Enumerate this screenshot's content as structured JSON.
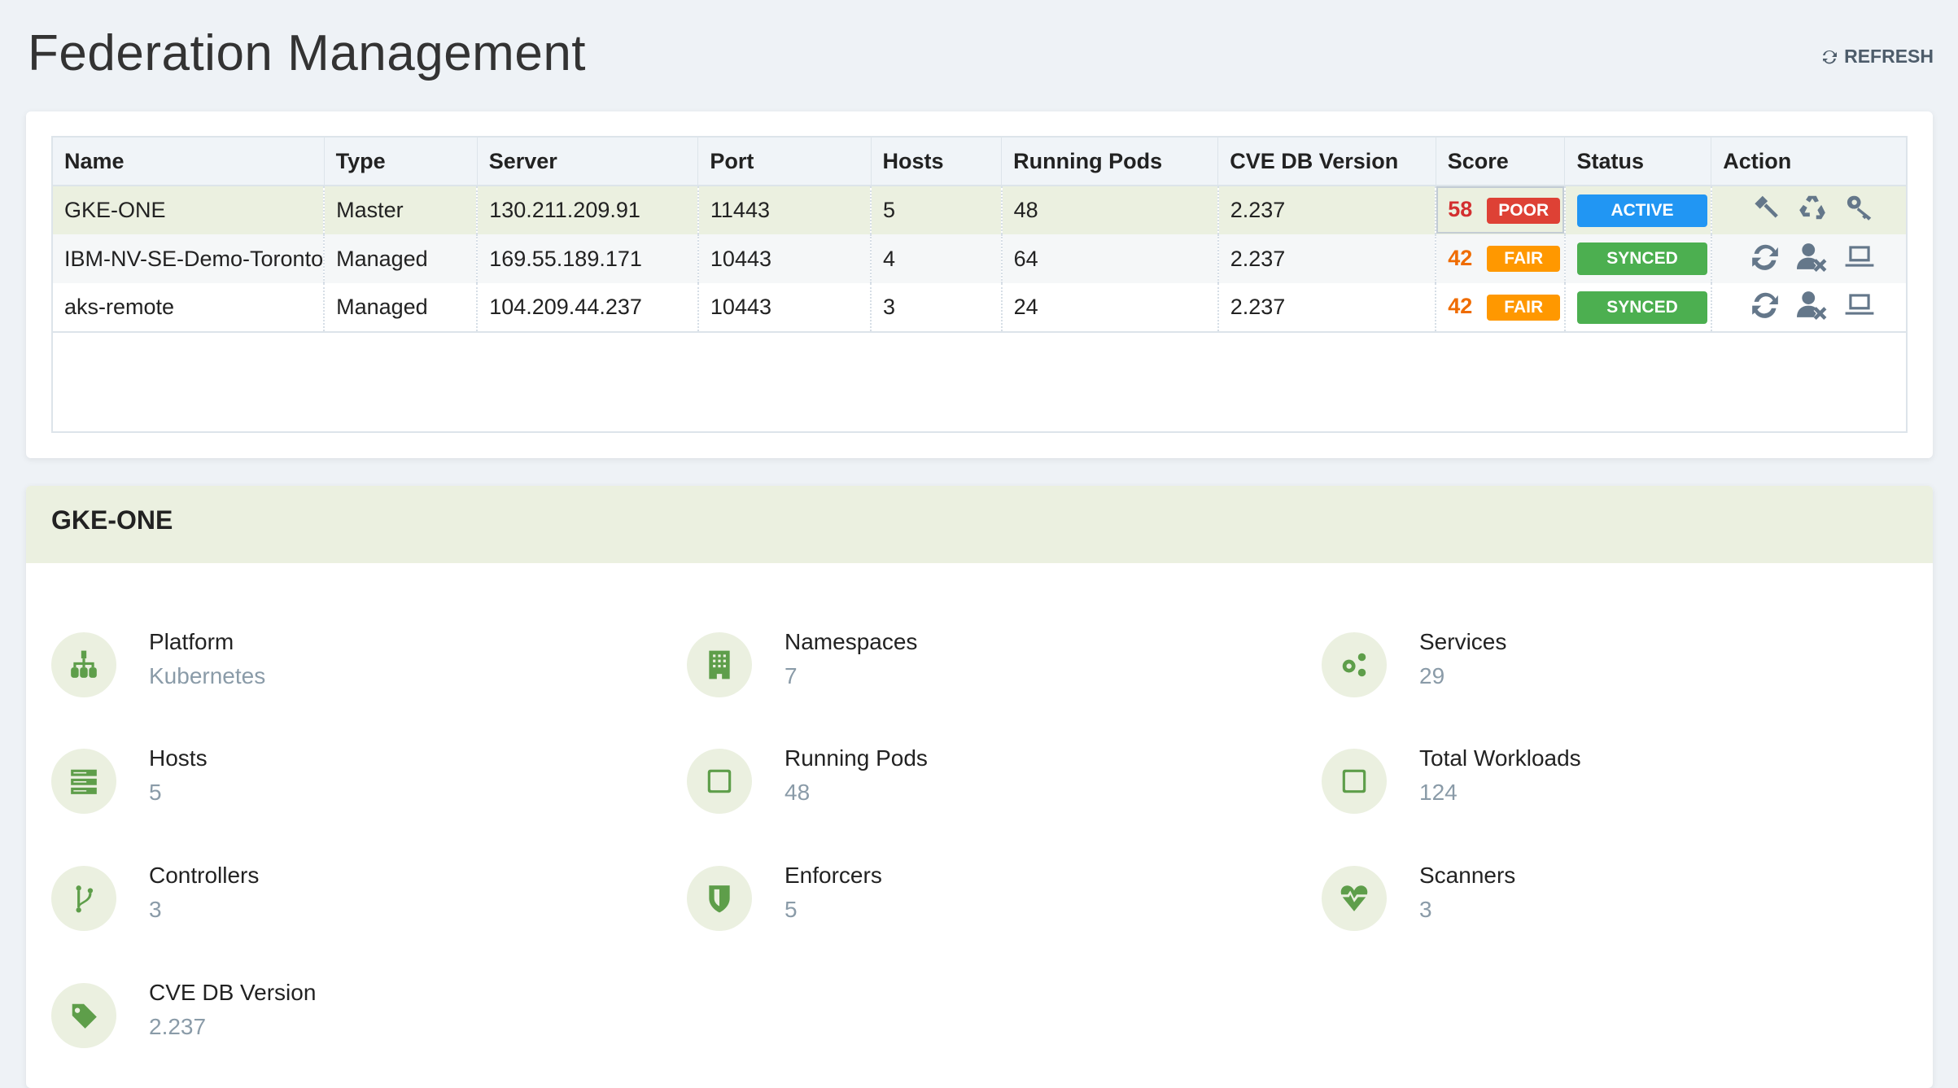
{
  "page": {
    "title": "Federation Management",
    "refresh_label": "REFRESH"
  },
  "table": {
    "columns": [
      "Name",
      "Type",
      "Server",
      "Port",
      "Hosts",
      "Running Pods",
      "CVE DB Version",
      "Score",
      "Status",
      "Action"
    ],
    "rows": [
      {
        "name": "GKE-ONE",
        "type": "Master",
        "server": "130.211.209.91",
        "port": "11443",
        "hosts": "5",
        "pods": "48",
        "cve": "2.237",
        "score": "58",
        "rating": "POOR",
        "rating_color": "#de4135",
        "score_color": "#d32f2f",
        "status": "ACTIVE",
        "status_color": "#2196f3",
        "actions": [
          "gavel-icon",
          "recycle-icon",
          "key-icon"
        ]
      },
      {
        "name": "IBM-NV-SE-Demo-Toronto",
        "type": "Managed",
        "server": "169.55.189.171",
        "port": "10443",
        "hosts": "4",
        "pods": "64",
        "cve": "2.237",
        "score": "42",
        "rating": "FAIR",
        "rating_color": "#ff9800",
        "score_color": "#ef6c00",
        "status": "SYNCED",
        "status_color": "#4caf50",
        "actions": [
          "sync-icon",
          "user-remove-icon",
          "laptop-icon"
        ]
      },
      {
        "name": "aks-remote",
        "type": "Managed",
        "server": "104.209.44.237",
        "port": "10443",
        "hosts": "3",
        "pods": "24",
        "cve": "2.237",
        "score": "42",
        "rating": "FAIR",
        "rating_color": "#ff9800",
        "score_color": "#ef6c00",
        "status": "SYNCED",
        "status_color": "#4caf50",
        "actions": [
          "sync-icon",
          "user-remove-icon",
          "laptop-icon"
        ]
      }
    ]
  },
  "detail": {
    "title": "GKE-ONE",
    "items": [
      {
        "label": "Platform",
        "value": "Kubernetes",
        "icon": "sitemap-icon"
      },
      {
        "label": "Namespaces",
        "value": "7",
        "icon": "building-icon"
      },
      {
        "label": "Services",
        "value": "29",
        "icon": "gears-icon"
      },
      {
        "label": "Hosts",
        "value": "5",
        "icon": "server-icon"
      },
      {
        "label": "Running Pods",
        "value": "48",
        "icon": "square-icon"
      },
      {
        "label": "Total Workloads",
        "value": "124",
        "icon": "square-icon"
      },
      {
        "label": "Controllers",
        "value": "3",
        "icon": "branch-icon"
      },
      {
        "label": "Enforcers",
        "value": "5",
        "icon": "shield-icon"
      },
      {
        "label": "Scanners",
        "value": "3",
        "icon": "heartbeat-icon"
      },
      {
        "label": "CVE DB Version",
        "value": "2.237",
        "icon": "tag-icon"
      }
    ]
  }
}
